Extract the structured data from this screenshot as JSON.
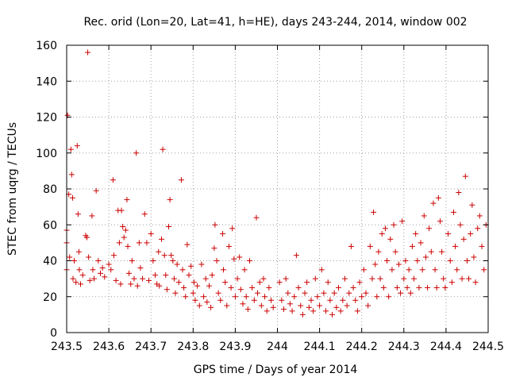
{
  "chart_data": {
    "type": "scatter",
    "title": "Rec. orid (Lon=20, Lat=41, h=HE), days 243-244, 2014, window 002",
    "xlabel": "GPS time / Days of year 2014",
    "ylabel": "STEC from uqrg / TECUs",
    "xlim": [
      243.5,
      244.5
    ],
    "ylim": [
      0,
      160
    ],
    "xticks": [
      243.5,
      243.6,
      243.7,
      243.8,
      243.9,
      244.0,
      244.1,
      244.2,
      244.3,
      244.4,
      244.5
    ],
    "xtick_labels": [
      "243.5",
      "243.6",
      "243.7",
      "243.8",
      "243.9",
      "244",
      "244.1",
      "244.2",
      "244.3",
      "244.4",
      "244.5"
    ],
    "yticks": [
      0,
      20,
      40,
      60,
      80,
      100,
      120,
      140,
      160
    ],
    "ytick_labels": [
      "0",
      "20",
      "40",
      "60",
      "80",
      "100",
      "120",
      "140",
      "160"
    ],
    "grid": true,
    "marker": "plus",
    "color": "#cc0000",
    "points": [
      [
        243.5,
        57
      ],
      [
        243.5,
        50
      ],
      [
        243.5,
        35
      ],
      [
        243.502,
        121
      ],
      [
        243.505,
        77
      ],
      [
        243.507,
        42
      ],
      [
        243.51,
        102
      ],
      [
        243.512,
        88
      ],
      [
        243.514,
        75
      ],
      [
        243.515,
        30
      ],
      [
        243.518,
        40
      ],
      [
        243.522,
        28
      ],
      [
        243.525,
        104
      ],
      [
        243.527,
        66
      ],
      [
        243.529,
        45
      ],
      [
        243.53,
        35
      ],
      [
        243.533,
        27
      ],
      [
        243.538,
        32
      ],
      [
        243.545,
        54
      ],
      [
        243.548,
        53
      ],
      [
        243.55,
        156
      ],
      [
        243.552,
        42
      ],
      [
        243.555,
        29
      ],
      [
        243.56,
        65
      ],
      [
        243.562,
        35
      ],
      [
        243.565,
        30
      ],
      [
        243.57,
        79
      ],
      [
        243.575,
        40
      ],
      [
        243.58,
        33
      ],
      [
        243.585,
        36
      ],
      [
        243.59,
        31
      ],
      [
        243.6,
        38
      ],
      [
        243.605,
        35
      ],
      [
        243.61,
        85
      ],
      [
        243.612,
        43
      ],
      [
        243.617,
        29
      ],
      [
        243.622,
        68
      ],
      [
        243.625,
        50
      ],
      [
        243.628,
        27
      ],
      [
        243.63,
        68
      ],
      [
        243.633,
        59
      ],
      [
        243.636,
        53
      ],
      [
        243.64,
        57
      ],
      [
        243.643,
        74
      ],
      [
        243.645,
        48
      ],
      [
        243.648,
        33
      ],
      [
        243.652,
        27
      ],
      [
        243.655,
        40
      ],
      [
        243.66,
        30
      ],
      [
        243.665,
        100
      ],
      [
        243.668,
        26
      ],
      [
        243.672,
        50
      ],
      [
        243.675,
        36
      ],
      [
        243.68,
        30
      ],
      [
        243.685,
        66
      ],
      [
        243.69,
        50
      ],
      [
        243.695,
        29
      ],
      [
        243.7,
        55
      ],
      [
        243.705,
        40
      ],
      [
        243.71,
        32
      ],
      [
        243.714,
        27
      ],
      [
        243.718,
        45
      ],
      [
        243.72,
        26
      ],
      [
        243.725,
        52
      ],
      [
        243.728,
        102
      ],
      [
        243.732,
        43
      ],
      [
        243.735,
        32
      ],
      [
        243.738,
        24
      ],
      [
        243.742,
        59
      ],
      [
        243.745,
        74
      ],
      [
        243.748,
        43
      ],
      [
        243.752,
        40
      ],
      [
        243.755,
        30
      ],
      [
        243.758,
        22
      ],
      [
        243.762,
        38
      ],
      [
        243.766,
        28
      ],
      [
        243.772,
        85
      ],
      [
        243.775,
        35
      ],
      [
        243.778,
        25
      ],
      [
        243.782,
        20
      ],
      [
        243.786,
        49
      ],
      [
        243.79,
        32
      ],
      [
        243.795,
        37
      ],
      [
        243.8,
        22
      ],
      [
        243.802,
        28
      ],
      [
        243.805,
        18
      ],
      [
        243.81,
        26
      ],
      [
        243.815,
        15
      ],
      [
        243.82,
        38
      ],
      [
        243.825,
        20
      ],
      [
        243.83,
        30
      ],
      [
        243.833,
        17
      ],
      [
        243.838,
        26
      ],
      [
        243.842,
        14
      ],
      [
        243.845,
        32
      ],
      [
        243.85,
        47
      ],
      [
        243.852,
        60
      ],
      [
        243.856,
        40
      ],
      [
        243.86,
        22
      ],
      [
        243.865,
        18
      ],
      [
        243.87,
        55
      ],
      [
        243.872,
        35
      ],
      [
        243.876,
        28
      ],
      [
        243.88,
        15
      ],
      [
        243.885,
        48
      ],
      [
        243.89,
        25
      ],
      [
        243.893,
        58
      ],
      [
        243.897,
        41
      ],
      [
        243.9,
        20
      ],
      [
        243.905,
        30
      ],
      [
        243.91,
        42
      ],
      [
        243.913,
        24
      ],
      [
        243.918,
        16
      ],
      [
        243.922,
        35
      ],
      [
        243.926,
        20
      ],
      [
        243.93,
        13
      ],
      [
        243.934,
        40
      ],
      [
        243.94,
        25
      ],
      [
        243.945,
        18
      ],
      [
        243.95,
        64
      ],
      [
        243.953,
        22
      ],
      [
        243.958,
        28
      ],
      [
        243.962,
        15
      ],
      [
        243.967,
        30
      ],
      [
        243.97,
        20
      ],
      [
        243.975,
        12
      ],
      [
        243.98,
        25
      ],
      [
        243.985,
        18
      ],
      [
        243.99,
        14
      ],
      [
        244.005,
        28
      ],
      [
        244.01,
        18
      ],
      [
        244.015,
        13
      ],
      [
        244.02,
        30
      ],
      [
        244.025,
        22
      ],
      [
        244.03,
        16
      ],
      [
        244.035,
        12
      ],
      [
        244.04,
        20
      ],
      [
        244.045,
        43
      ],
      [
        244.05,
        25
      ],
      [
        244.055,
        15
      ],
      [
        244.06,
        10
      ],
      [
        244.065,
        22
      ],
      [
        244.07,
        28
      ],
      [
        244.075,
        14
      ],
      [
        244.08,
        18
      ],
      [
        244.085,
        12
      ],
      [
        244.09,
        30
      ],
      [
        244.095,
        20
      ],
      [
        244.1,
        15
      ],
      [
        244.105,
        35
      ],
      [
        244.11,
        22
      ],
      [
        244.115,
        12
      ],
      [
        244.12,
        28
      ],
      [
        244.125,
        18
      ],
      [
        244.13,
        10
      ],
      [
        244.135,
        22
      ],
      [
        244.14,
        14
      ],
      [
        244.145,
        25
      ],
      [
        244.15,
        12
      ],
      [
        244.155,
        18
      ],
      [
        244.16,
        30
      ],
      [
        244.165,
        15
      ],
      [
        244.17,
        22
      ],
      [
        244.175,
        48
      ],
      [
        244.18,
        25
      ],
      [
        244.185,
        18
      ],
      [
        244.19,
        12
      ],
      [
        244.195,
        28
      ],
      [
        244.2,
        20
      ],
      [
        244.205,
        35
      ],
      [
        244.21,
        22
      ],
      [
        244.215,
        15
      ],
      [
        244.22,
        48
      ],
      [
        244.225,
        30
      ],
      [
        244.228,
        67
      ],
      [
        244.232,
        38
      ],
      [
        244.236,
        20
      ],
      [
        244.24,
        45
      ],
      [
        244.244,
        30
      ],
      [
        244.248,
        55
      ],
      [
        244.252,
        25
      ],
      [
        244.256,
        58
      ],
      [
        244.26,
        40
      ],
      [
        244.264,
        20
      ],
      [
        244.268,
        52
      ],
      [
        244.272,
        35
      ],
      [
        244.276,
        60
      ],
      [
        244.28,
        45
      ],
      [
        244.284,
        25
      ],
      [
        244.288,
        38
      ],
      [
        244.292,
        22
      ],
      [
        244.296,
        62
      ],
      [
        244.3,
        30
      ],
      [
        244.304,
        40
      ],
      [
        244.308,
        25
      ],
      [
        244.312,
        35
      ],
      [
        244.316,
        22
      ],
      [
        244.32,
        48
      ],
      [
        244.324,
        30
      ],
      [
        244.328,
        55
      ],
      [
        244.332,
        40
      ],
      [
        244.336,
        25
      ],
      [
        244.34,
        50
      ],
      [
        244.344,
        35
      ],
      [
        244.348,
        65
      ],
      [
        244.352,
        42
      ],
      [
        244.356,
        25
      ],
      [
        244.36,
        58
      ],
      [
        244.365,
        45
      ],
      [
        244.37,
        72
      ],
      [
        244.374,
        35
      ],
      [
        244.378,
        25
      ],
      [
        244.382,
        75
      ],
      [
        244.386,
        62
      ],
      [
        244.39,
        45
      ],
      [
        244.394,
        30
      ],
      [
        244.398,
        25
      ],
      [
        244.405,
        55
      ],
      [
        244.41,
        40
      ],
      [
        244.414,
        28
      ],
      [
        244.418,
        67
      ],
      [
        244.422,
        48
      ],
      [
        244.426,
        35
      ],
      [
        244.43,
        78
      ],
      [
        244.434,
        60
      ],
      [
        244.438,
        30
      ],
      [
        244.442,
        52
      ],
      [
        244.446,
        87
      ],
      [
        244.45,
        40
      ],
      [
        244.454,
        30
      ],
      [
        244.458,
        55
      ],
      [
        244.462,
        71
      ],
      [
        244.466,
        42
      ],
      [
        244.47,
        28
      ],
      [
        244.475,
        58
      ],
      [
        244.48,
        65
      ],
      [
        244.485,
        48
      ],
      [
        244.49,
        35
      ],
      [
        244.495,
        60
      ]
    ]
  }
}
